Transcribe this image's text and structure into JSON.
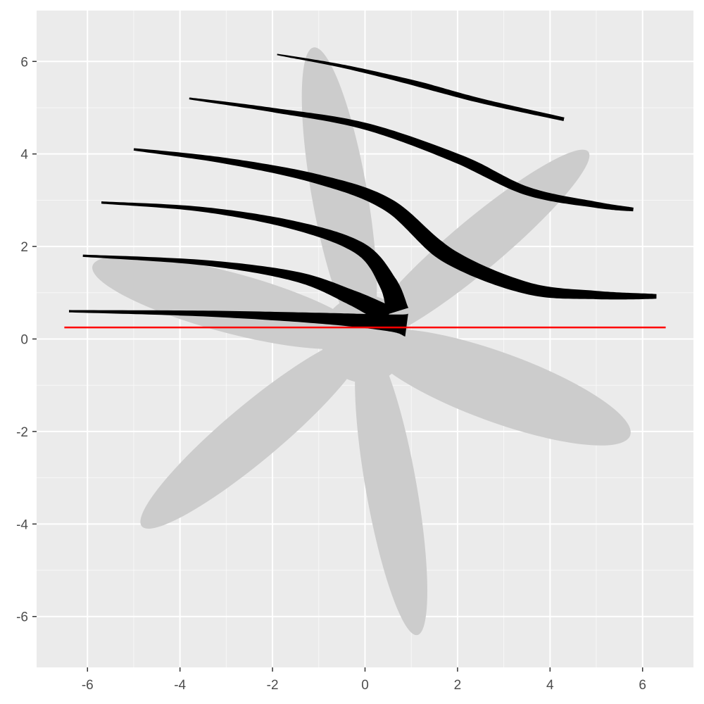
{
  "chart_data": {
    "type": "scatter",
    "title": "",
    "xlabel": "",
    "ylabel": "",
    "xlim": [
      -7.1,
      7.1
    ],
    "ylim": [
      -7.1,
      7.1
    ],
    "x_ticks": [
      -6,
      -4,
      -2,
      0,
      2,
      4,
      6
    ],
    "y_ticks": [
      -6,
      -4,
      -2,
      0,
      2,
      4,
      6
    ],
    "x_tick_labels": [
      "-6",
      "-4",
      "-2",
      "0",
      "2",
      "4",
      "6"
    ],
    "y_tick_labels": [
      "-6",
      "-4",
      "-2",
      "0",
      "2",
      "4",
      "6"
    ],
    "grid": true,
    "colors": {
      "panel": "#ebebeb",
      "grid": "#ffffff",
      "petal": "#cccccc",
      "stroke": "#000000",
      "reference_line": "#ff0000"
    },
    "flower": {
      "center": [
        0,
        0
      ],
      "center_radius": 0.95,
      "petals": [
        {
          "angle_deg": 100,
          "length": 6.4,
          "width": 1.2
        },
        {
          "angle_deg": 40,
          "length": 6.3,
          "width": 1.1
        },
        {
          "angle_deg": -20,
          "length": 6.1,
          "width": 1.5
        },
        {
          "angle_deg": -80,
          "length": 6.5,
          "width": 1.1
        },
        {
          "angle_deg": -140,
          "length": 6.3,
          "width": 1.2
        },
        {
          "angle_deg": 165,
          "length": 6.1,
          "width": 1.3
        }
      ]
    },
    "strokes": [
      {
        "points": [
          [
            -6.4,
            0.6
          ],
          [
            -3.5,
            0.55
          ],
          [
            -1.0,
            0.45
          ],
          [
            0.5,
            0.35
          ],
          [
            0.9,
            0.3
          ]
        ],
        "width_start": 0.05,
        "width_end": 0.5
      },
      {
        "points": [
          [
            -6.1,
            1.8
          ],
          [
            -3.5,
            1.65
          ],
          [
            -1.5,
            1.35
          ],
          [
            -0.3,
            0.9
          ],
          [
            0.5,
            0.5
          ]
        ],
        "width_start": 0.05,
        "width_end": 0.45
      },
      {
        "points": [
          [
            -5.7,
            2.95
          ],
          [
            -3.5,
            2.8
          ],
          [
            -1.5,
            2.45
          ],
          [
            -0.1,
            1.95
          ],
          [
            0.5,
            1.2
          ],
          [
            0.7,
            0.6
          ]
        ],
        "width_start": 0.05,
        "width_end": 0.5
      },
      {
        "points": [
          [
            -5.0,
            4.1
          ],
          [
            -3.0,
            3.85
          ],
          [
            -1.0,
            3.45
          ],
          [
            0.5,
            2.9
          ],
          [
            1.8,
            1.8
          ],
          [
            3.5,
            1.1
          ],
          [
            5.0,
            0.95
          ],
          [
            6.3,
            0.92
          ]
        ],
        "width_start": 0.05,
        "width_end": 0.1,
        "width_mid": 0.35
      },
      {
        "points": [
          [
            -3.8,
            5.2
          ],
          [
            -2.0,
            4.95
          ],
          [
            0.0,
            4.6
          ],
          [
            2.0,
            3.9
          ],
          [
            3.5,
            3.2
          ],
          [
            5.0,
            2.9
          ],
          [
            5.8,
            2.8
          ]
        ],
        "width_start": 0.04,
        "width_end": 0.08,
        "width_mid": 0.22
      },
      {
        "points": [
          [
            -1.9,
            6.15
          ],
          [
            -0.5,
            5.9
          ],
          [
            1.0,
            5.55
          ],
          [
            2.5,
            5.15
          ],
          [
            4.3,
            4.75
          ]
        ],
        "width_start": 0.03,
        "width_end": 0.08,
        "width_mid": 0.12
      }
    ],
    "reference_line": {
      "y": 0.25,
      "x_from": -6.5,
      "x_to": 6.5
    }
  }
}
